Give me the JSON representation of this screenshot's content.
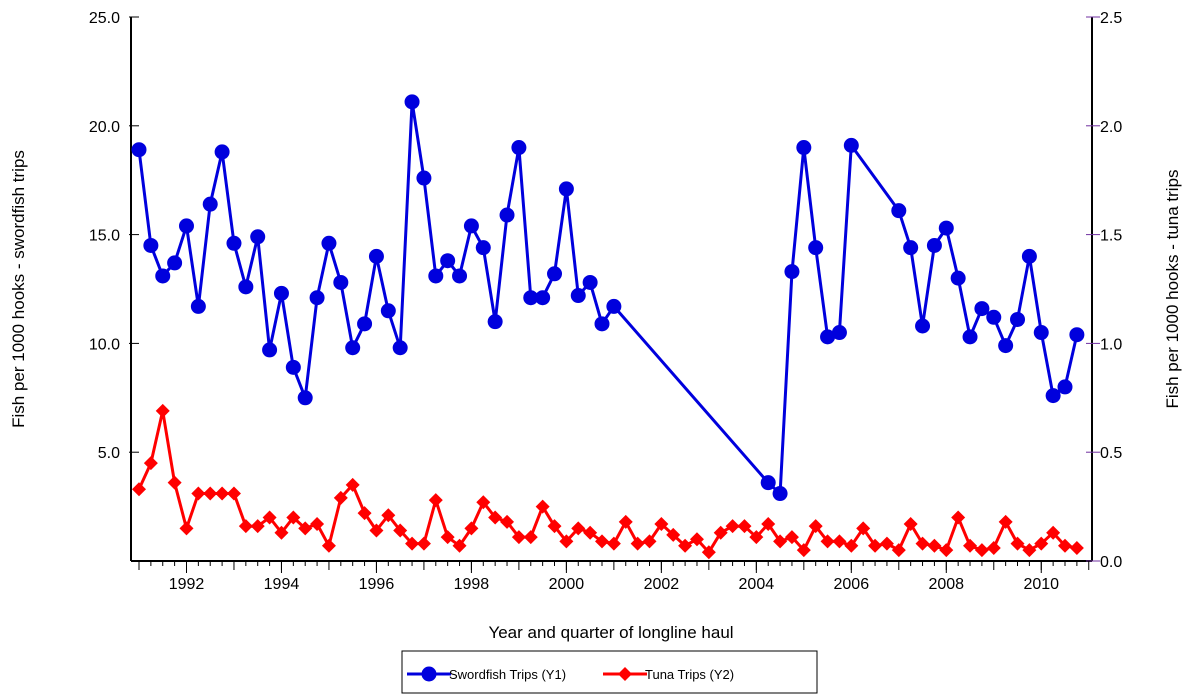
{
  "chart_data": {
    "type": "line",
    "xlabel": "Year and quarter of longline haul",
    "ylabel_left": "Fish per 1000 hooks - swordfish trips",
    "ylabel_right": "Fish per 1000 hooks - tuna trips",
    "y1_range": [
      0,
      25
    ],
    "y2_range": [
      0,
      2.5
    ],
    "y1_tick_labels": [
      "5.0",
      "10.0",
      "15.0",
      "20.0",
      "25.0"
    ],
    "y2_tick_labels": [
      "0.0",
      "0.5",
      "1.0",
      "1.5",
      "2.0",
      "2.5"
    ],
    "x_range": [
      1991.0,
      2010.9
    ],
    "x_tick_labels": [
      "1992",
      "1994",
      "1996",
      "1998",
      "2000",
      "2002",
      "2004",
      "2006",
      "2008",
      "2010"
    ],
    "grid": false,
    "legend_position": "bottom",
    "series": [
      {
        "name": "Swordfish Trips (Y1)",
        "axis": "Y1",
        "color": "#0000dd",
        "marker": "circle",
        "x": [
          1991.0,
          1991.25,
          1991.5,
          1991.75,
          1992.0,
          1992.25,
          1992.5,
          1992.75,
          1993.0,
          1993.25,
          1993.5,
          1993.75,
          1994.0,
          1994.25,
          1994.5,
          1994.75,
          1995.0,
          1995.25,
          1995.5,
          1995.75,
          1996.0,
          1996.25,
          1996.5,
          1996.75,
          1997.0,
          1997.25,
          1997.5,
          1997.75,
          1998.0,
          1998.25,
          1998.5,
          1998.75,
          1999.0,
          1999.25,
          1999.5,
          1999.75,
          2000.0,
          2000.25,
          2000.5,
          2000.75,
          2001.0,
          2004.25,
          2004.5,
          2004.75,
          2005.0,
          2005.25,
          2005.5,
          2005.75,
          2006.0,
          2007.0,
          2007.25,
          2007.5,
          2007.75,
          2008.0,
          2008.25,
          2008.5,
          2008.75,
          2009.0,
          2009.25,
          2009.5,
          2009.75,
          2010.0,
          2010.25,
          2010.5,
          2010.75
        ],
        "y": [
          18.9,
          14.5,
          13.1,
          13.7,
          15.4,
          11.7,
          16.4,
          18.8,
          14.6,
          12.6,
          14.9,
          9.7,
          12.3,
          8.9,
          7.5,
          12.1,
          14.6,
          12.8,
          9.8,
          10.9,
          14.0,
          11.5,
          9.8,
          21.1,
          17.6,
          13.1,
          13.8,
          13.1,
          15.4,
          14.4,
          11.0,
          15.9,
          19.0,
          12.1,
          12.1,
          13.2,
          17.1,
          12.2,
          12.8,
          10.9,
          11.7,
          3.6,
          3.1,
          13.3,
          19.0,
          14.4,
          10.3,
          10.5,
          19.1,
          16.1,
          14.4,
          10.8,
          14.5,
          15.3,
          13.0,
          10.3,
          11.6,
          11.2,
          9.9,
          11.1,
          14.0,
          10.5,
          7.6,
          8.0,
          10.4
        ]
      },
      {
        "name": "Tuna Trips (Y2)",
        "axis": "Y2",
        "color": "#ff0000",
        "marker": "diamond",
        "x": [
          1991.0,
          1991.25,
          1991.5,
          1991.75,
          1992.0,
          1992.25,
          1992.5,
          1992.75,
          1993.0,
          1993.25,
          1993.5,
          1993.75,
          1994.0,
          1994.25,
          1994.5,
          1994.75,
          1995.0,
          1995.25,
          1995.5,
          1995.75,
          1996.0,
          1996.25,
          1996.5,
          1996.75,
          1997.0,
          1997.25,
          1997.5,
          1997.75,
          1998.0,
          1998.25,
          1998.5,
          1998.75,
          1999.0,
          1999.25,
          1999.5,
          1999.75,
          2000.0,
          2000.25,
          2000.5,
          2000.75,
          2001.0,
          2001.25,
          2001.5,
          2001.75,
          2002.0,
          2002.25,
          2002.5,
          2002.75,
          2003.0,
          2003.25,
          2003.5,
          2003.75,
          2004.0,
          2004.25,
          2004.5,
          2004.75,
          2005.0,
          2005.25,
          2005.5,
          2005.75,
          2006.0,
          2006.25,
          2006.5,
          2006.75,
          2007.0,
          2007.25,
          2007.5,
          2007.75,
          2008.0,
          2008.25,
          2008.5,
          2008.75,
          2009.0,
          2009.25,
          2009.5,
          2009.75,
          2010.0,
          2010.25,
          2010.5,
          2010.75
        ],
        "y": [
          0.33,
          0.45,
          0.69,
          0.36,
          0.15,
          0.31,
          0.31,
          0.31,
          0.31,
          0.16,
          0.16,
          0.2,
          0.13,
          0.2,
          0.15,
          0.17,
          0.07,
          0.29,
          0.35,
          0.22,
          0.14,
          0.21,
          0.14,
          0.08,
          0.08,
          0.28,
          0.11,
          0.07,
          0.15,
          0.27,
          0.2,
          0.18,
          0.11,
          0.11,
          0.25,
          0.16,
          0.09,
          0.15,
          0.13,
          0.09,
          0.08,
          0.18,
          0.08,
          0.09,
          0.17,
          0.12,
          0.07,
          0.1,
          0.04,
          0.13,
          0.16,
          0.16,
          0.11,
          0.17,
          0.09,
          0.11,
          0.05,
          0.16,
          0.09,
          0.09,
          0.07,
          0.15,
          0.07,
          0.08,
          0.05,
          0.17,
          0.08,
          0.07,
          0.05,
          0.2,
          0.07,
          0.05,
          0.06,
          0.18,
          0.08,
          0.05,
          0.08,
          0.13,
          0.07,
          0.06
        ]
      }
    ]
  }
}
